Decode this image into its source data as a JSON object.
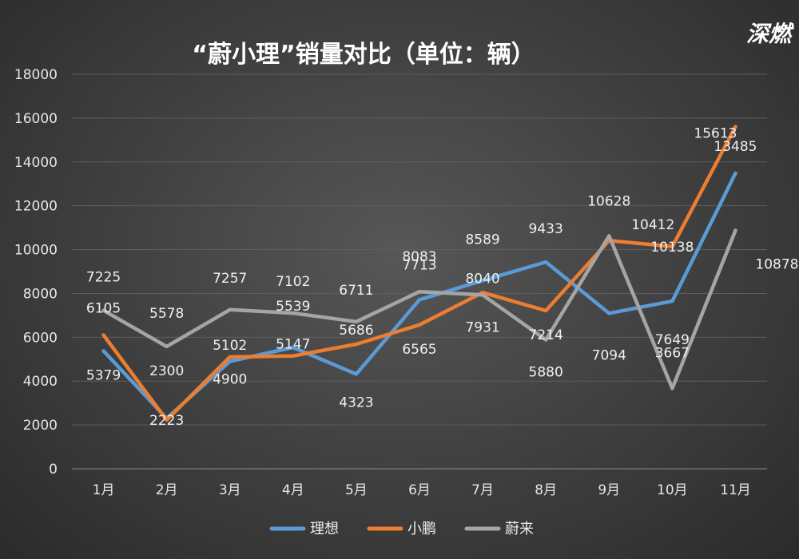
{
  "brand": {
    "logo_text": "深燃"
  },
  "chart_data": {
    "type": "line",
    "title": "“蔚小理”销量对比（单位：辆）",
    "categories": [
      "1月",
      "2月",
      "3月",
      "4月",
      "5月",
      "6月",
      "7月",
      "8月",
      "9月",
      "10月",
      "11月"
    ],
    "ylim": [
      0,
      18000
    ],
    "yticks": [
      0,
      2000,
      4000,
      6000,
      8000,
      10000,
      12000,
      14000,
      16000,
      18000
    ],
    "grid": true,
    "legend_position": "bottom",
    "series": [
      {
        "name": "理想",
        "color": "#5b9bd5",
        "values": [
          5379,
          2300,
          4900,
          5539,
          4323,
          7713,
          8589,
          9433,
          7094,
          7649,
          13485
        ]
      },
      {
        "name": "小鹏",
        "color": "#ed7d31",
        "values": [
          6105,
          2223,
          5102,
          5147,
          5686,
          6565,
          8040,
          7214,
          10412,
          10138,
          15613
        ]
      },
      {
        "name": "蔚来",
        "color": "#a5a5a5",
        "values": [
          7225,
          5578,
          7257,
          7102,
          6711,
          8083,
          7931,
          5880,
          10628,
          3667,
          10878
        ]
      }
    ]
  }
}
